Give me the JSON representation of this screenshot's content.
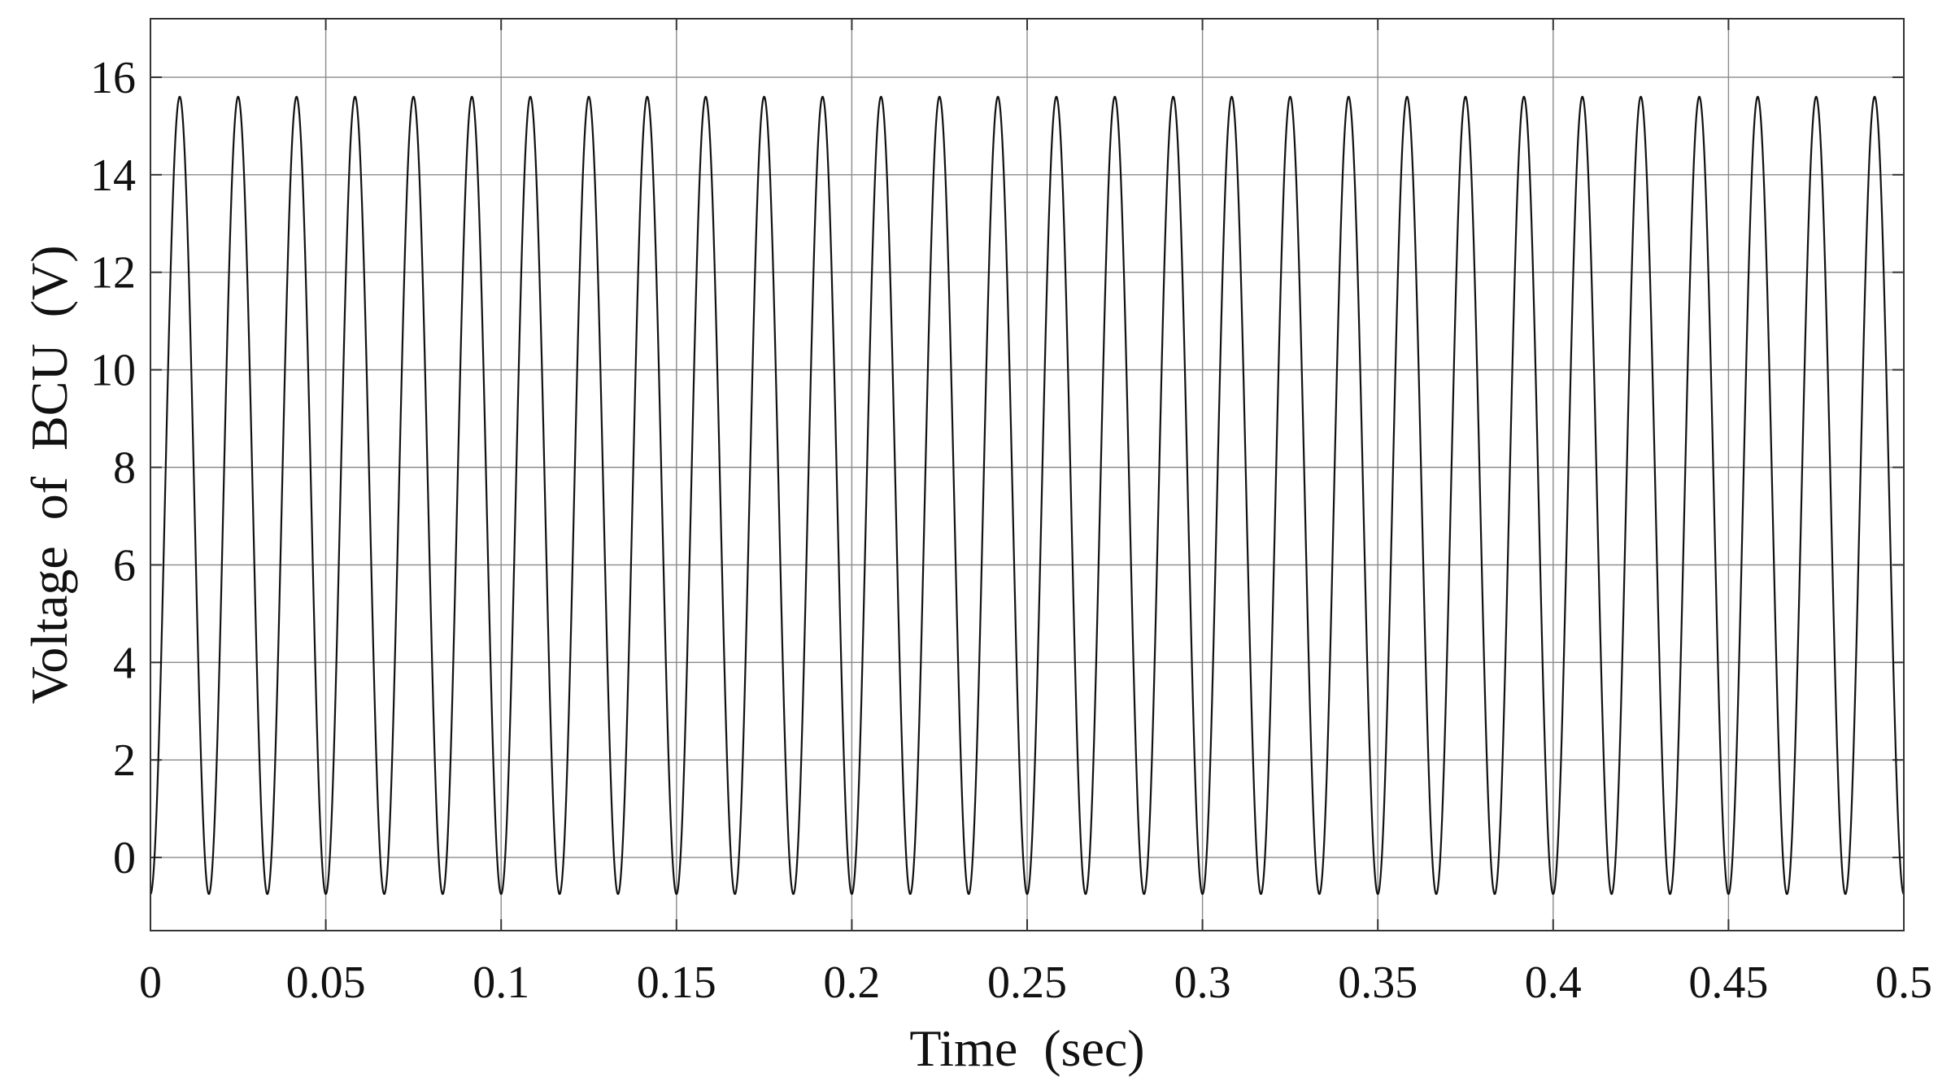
{
  "chart_data": {
    "type": "line",
    "title": "",
    "xlabel": "Time  (sec)",
    "ylabel": "Voltage  of  BCU  (V)",
    "xlim": [
      0,
      0.5
    ],
    "ylim": [
      -1.5,
      17.2
    ],
    "xticks": [
      0,
      0.05,
      0.1,
      0.15,
      0.2,
      0.25,
      0.3,
      0.35,
      0.4,
      0.45,
      0.5
    ],
    "xtick_labels": [
      "0",
      "0.05",
      "0.1",
      "0.15",
      "0.2",
      "0.25",
      "0.3",
      "0.35",
      "0.4",
      "0.45",
      "0.5"
    ],
    "yticks": [
      0,
      2,
      4,
      6,
      8,
      10,
      12,
      14,
      16
    ],
    "ytick_labels": [
      "0",
      "2",
      "4",
      "6",
      "8",
      "10",
      "12",
      "14",
      "16"
    ],
    "grid": true,
    "legend": "none",
    "series": [
      {
        "color": "#111111",
        "waveform": "sinusoid",
        "frequency_hz": 60,
        "min_v": -0.75,
        "max_v": 15.6,
        "phase_start": "minimum"
      }
    ]
  }
}
